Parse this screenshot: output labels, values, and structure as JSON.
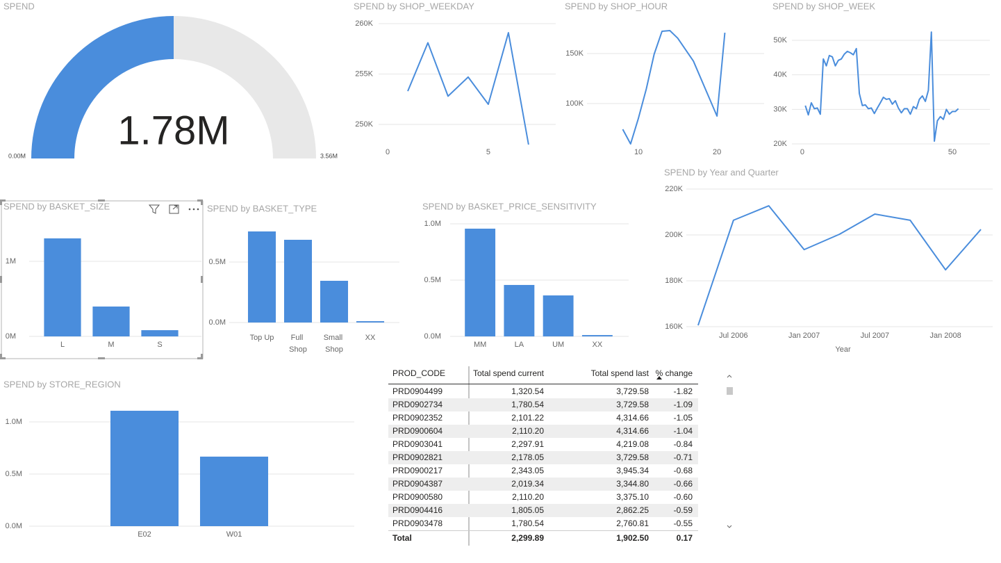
{
  "chart_data": [
    {
      "type": "gauge",
      "title": "SPEND",
      "values": [
        1780000
      ],
      "value_labels": [
        "1.78M"
      ],
      "min": {
        "value": 0,
        "label": "0.00M"
      },
      "max": {
        "value": 3560000,
        "label": "3.56M"
      },
      "color": "#4a8ddc",
      "track_color": "#e8e8e8"
    },
    {
      "type": "line",
      "title": "SPEND by SHOP_WEEKDAY",
      "x": [
        1,
        2,
        3,
        4,
        5,
        6,
        7
      ],
      "values": [
        253300,
        258100,
        252800,
        254700,
        252000,
        259100,
        248000
      ],
      "color": "#4a8ddc",
      "xlim": [
        -0.45,
        8.35
      ],
      "xticks": [
        0,
        5
      ],
      "ylim": [
        247500,
        260500
      ],
      "yticks": [
        {
          "value": 250000,
          "label": "250K"
        },
        {
          "value": 255000,
          "label": "255K"
        },
        {
          "value": 260000,
          "label": "260K"
        }
      ],
      "grid": true
    },
    {
      "type": "line",
      "title": "SPEND by SHOP_HOUR",
      "x": [
        8,
        9,
        10,
        11,
        12,
        13,
        14,
        15,
        17,
        20,
        21
      ],
      "values": [
        74300,
        59700,
        85400,
        114600,
        149300,
        172200,
        172900,
        165300,
        142400,
        87500,
        170800
      ],
      "color": "#4a8ddc",
      "xlim": [
        3.45,
        26
      ],
      "xticks": [
        10,
        20
      ],
      "ylim": [
        55000,
        180000
      ],
      "yticks": [
        {
          "value": 100000,
          "label": "100K"
        },
        {
          "value": 150000,
          "label": "150K"
        }
      ],
      "grid": true
    },
    {
      "type": "line",
      "title": "SPEND by SHOP_WEEK",
      "x": [
        1,
        2,
        3,
        4,
        5,
        6,
        7,
        8,
        9,
        10,
        11,
        12,
        13,
        14,
        15,
        16,
        17,
        18,
        19,
        20,
        21,
        22,
        23,
        24,
        25,
        26,
        27,
        28,
        29,
        30,
        31,
        32,
        33,
        34,
        35,
        36,
        37,
        38,
        39,
        40,
        41,
        42,
        43,
        44,
        45,
        46,
        47,
        48,
        49,
        50,
        51,
        52
      ],
      "values": [
        31100,
        28400,
        31900,
        30200,
        30400,
        28600,
        44600,
        42600,
        45600,
        45200,
        42600,
        44200,
        44600,
        46000,
        46800,
        46400,
        45800,
        47600,
        34600,
        31100,
        31300,
        30200,
        30400,
        28800,
        30400,
        31900,
        33500,
        32900,
        33100,
        31500,
        32500,
        30400,
        29000,
        30200,
        30200,
        28600,
        30800,
        30200,
        32900,
        33900,
        32300,
        35500,
        52400,
        20800,
        26700,
        27900,
        27100,
        30000,
        28600,
        29400,
        29400,
        30200
      ],
      "color": "#4a8ddc",
      "xlim": [
        -3.47,
        62.5
      ],
      "xticks": [
        0,
        50
      ],
      "ylim": [
        19000,
        55000
      ],
      "yticks": [
        {
          "value": 20000,
          "label": "20K"
        },
        {
          "value": 30000,
          "label": "30K"
        },
        {
          "value": 40000,
          "label": "40K"
        },
        {
          "value": 50000,
          "label": "50K"
        }
      ],
      "grid": true
    },
    {
      "type": "line",
      "title": "SPEND by Year and Quarter",
      "x_label": "Year",
      "x": [
        "2006-04",
        "2006-07",
        "2006-10",
        "2007-01",
        "2007-04",
        "2007-07",
        "2007-10",
        "2008-01",
        "2008-04"
      ],
      "values": [
        160600,
        206400,
        212700,
        193600,
        200300,
        209100,
        206400,
        184800,
        202400
      ],
      "color": "#4a8ddc",
      "xlim": [
        "2006-03",
        "2008-05"
      ],
      "xticks": [
        {
          "value": "2006-07",
          "label": "Jul 2006"
        },
        {
          "value": "2007-01",
          "label": "Jan 2007"
        },
        {
          "value": "2007-07",
          "label": "Jul 2007"
        },
        {
          "value": "2008-01",
          "label": "Jan 2008"
        }
      ],
      "ylim": [
        158000,
        222000
      ],
      "yticks": [
        {
          "value": 160000,
          "label": "160K"
        },
        {
          "value": 180000,
          "label": "180K"
        },
        {
          "value": 200000,
          "label": "200K"
        },
        {
          "value": 220000,
          "label": "220K"
        }
      ],
      "grid": true
    },
    {
      "type": "bar",
      "title": "SPEND by BASKET_SIZE",
      "categories": [
        "L",
        "M",
        "S"
      ],
      "values": [
        1306000,
        398000,
        83000
      ],
      "color": "#4a8ddc",
      "ylim": [
        0,
        1500000
      ],
      "yticks": [
        {
          "value": 0,
          "label": "0M"
        },
        {
          "value": 1000000,
          "label": "1M"
        }
      ],
      "grid": true
    },
    {
      "type": "bar",
      "title": "SPEND by BASKET_TYPE",
      "categories": [
        "Top Up",
        "Full Shop",
        "Small Shop",
        "XX"
      ],
      "values": [
        753000,
        684000,
        345000,
        11000
      ],
      "color": "#4a8ddc",
      "ylim": [
        0,
        850000
      ],
      "yticks": [
        {
          "value": 0,
          "label": "0.0M"
        },
        {
          "value": 500000,
          "label": "0.5M"
        }
      ],
      "grid": true
    },
    {
      "type": "bar",
      "title": "SPEND by BASKET_PRICE_SENSITIVITY",
      "categories": [
        "MM",
        "LA",
        "UM",
        "XX"
      ],
      "values": [
        957000,
        457000,
        364000,
        12000
      ],
      "color": "#4a8ddc",
      "ylim": [
        0,
        1050000
      ],
      "yticks": [
        {
          "value": 0,
          "label": "0.0M"
        },
        {
          "value": 500000,
          "label": "0.5M"
        },
        {
          "value": 1000000,
          "label": "1.0M"
        }
      ],
      "grid": true
    },
    {
      "type": "bar",
      "title": "SPEND by STORE_REGION",
      "categories": [
        "E02",
        "W01"
      ],
      "values": [
        1107000,
        667000
      ],
      "color": "#4a8ddc",
      "ylim": [
        0,
        1150000
      ],
      "yticks": [
        {
          "value": 0,
          "label": "0.0M"
        },
        {
          "value": 500000,
          "label": "0.5M"
        },
        {
          "value": 1000000,
          "label": "1.0M"
        }
      ],
      "grid": true
    }
  ],
  "table": {
    "columns": [
      "PROD_CODE",
      "Total spend current",
      "Total spend last",
      "% change"
    ],
    "rows": [
      [
        "PRD0904499",
        "1,320.54",
        "3,729.58",
        "-1.82"
      ],
      [
        "PRD0902734",
        "1,780.54",
        "3,729.58",
        "-1.09"
      ],
      [
        "PRD0902352",
        "2,101.22",
        "4,314.66",
        "-1.05"
      ],
      [
        "PRD0900604",
        "2,110.20",
        "4,314.66",
        "-1.04"
      ],
      [
        "PRD0903041",
        "2,297.91",
        "4,219.08",
        "-0.84"
      ],
      [
        "PRD0902821",
        "2,178.05",
        "3,729.58",
        "-0.71"
      ],
      [
        "PRD0900217",
        "2,343.05",
        "3,945.34",
        "-0.68"
      ],
      [
        "PRD0904387",
        "2,019.34",
        "3,344.80",
        "-0.66"
      ],
      [
        "PRD0900580",
        "2,110.20",
        "3,375.10",
        "-0.60"
      ],
      [
        "PRD0904416",
        "1,805.05",
        "2,862.25",
        "-0.59"
      ],
      [
        "PRD0903478",
        "1,780.54",
        "2,760.81",
        "-0.55"
      ]
    ],
    "total": [
      "Total",
      "2,299.89",
      "1,902.50",
      "0.17"
    ]
  }
}
